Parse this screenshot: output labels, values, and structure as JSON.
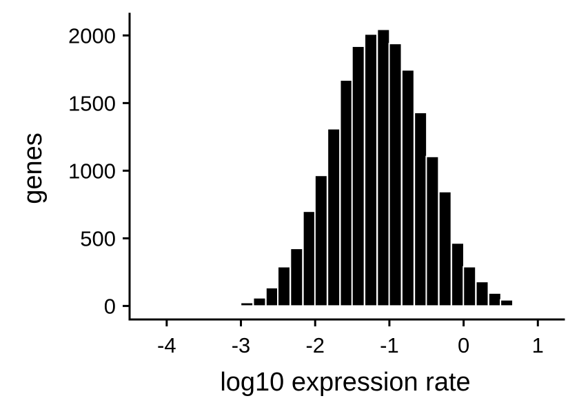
{
  "chart_data": {
    "type": "bar",
    "xlabel": "log10 expression rate",
    "ylabel": "genes",
    "xlim": [
      -4.5,
      1.35
    ],
    "ylim": [
      -100,
      2160
    ],
    "xticks": [
      -4,
      -3,
      -2,
      -1,
      0,
      1
    ],
    "yticks": [
      0,
      500,
      1000,
      1500,
      2000
    ],
    "grid": false,
    "bin_width": 0.1667,
    "bin_centers": [
      -3.08,
      -2.92,
      -2.75,
      -2.58,
      -2.42,
      -2.25,
      -2.08,
      -1.92,
      -1.75,
      -1.58,
      -1.42,
      -1.25,
      -1.08,
      -0.92,
      -0.75,
      -0.58,
      -0.42,
      -0.25,
      -0.08,
      0.08,
      0.25,
      0.42,
      0.58,
      0.75
    ],
    "values": [
      5,
      25,
      60,
      135,
      290,
      425,
      700,
      965,
      1310,
      1670,
      1920,
      2010,
      2045,
      1940,
      1745,
      1430,
      1105,
      845,
      465,
      290,
      180,
      95,
      45,
      10
    ],
    "bar_color": "#000000",
    "edge_color": "#ffffff",
    "axis_color": "#000000"
  }
}
